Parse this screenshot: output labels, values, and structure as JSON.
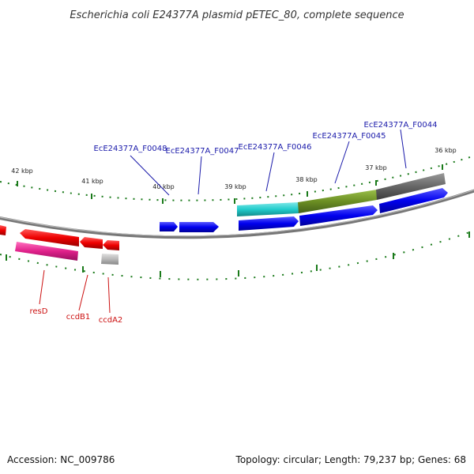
{
  "title": "Escherichia coli E24377A plasmid pETEC_80, complete sequence",
  "footer": {
    "accession": "Accession: NC_009786",
    "summary": "Topology: circular; Length: 79,237 bp; Genes: 68"
  },
  "colors": {
    "backbone": "#888888",
    "forward_cds": "#0000ee",
    "reverse_cds": "#ee0000",
    "label_blue": "#1a1aaa",
    "label_red": "#cc1111",
    "tick": "#1a7a1a",
    "cyan_feature": "#22cccc",
    "olive_feature": "#6b8e23",
    "gray_feature": "#666666",
    "pink_feature": "#e0208a",
    "light_gray_feature": "#b8b8b8"
  },
  "kbp_labels": [
    "42 kbp",
    "41 kbp",
    "40 kbp",
    "39 kbp",
    "38 kbp",
    "37 kbp",
    "36 kbp"
  ],
  "gene_labels_top": [
    "EcE24377A_F0048",
    "EcE24377A_F0047",
    "EcE24377A_F0046",
    "EcE24377A_F0045",
    "EcE24377A_F0044"
  ],
  "gene_labels_bottom": [
    "resD",
    "ccdB1",
    "ccdA2"
  ]
}
